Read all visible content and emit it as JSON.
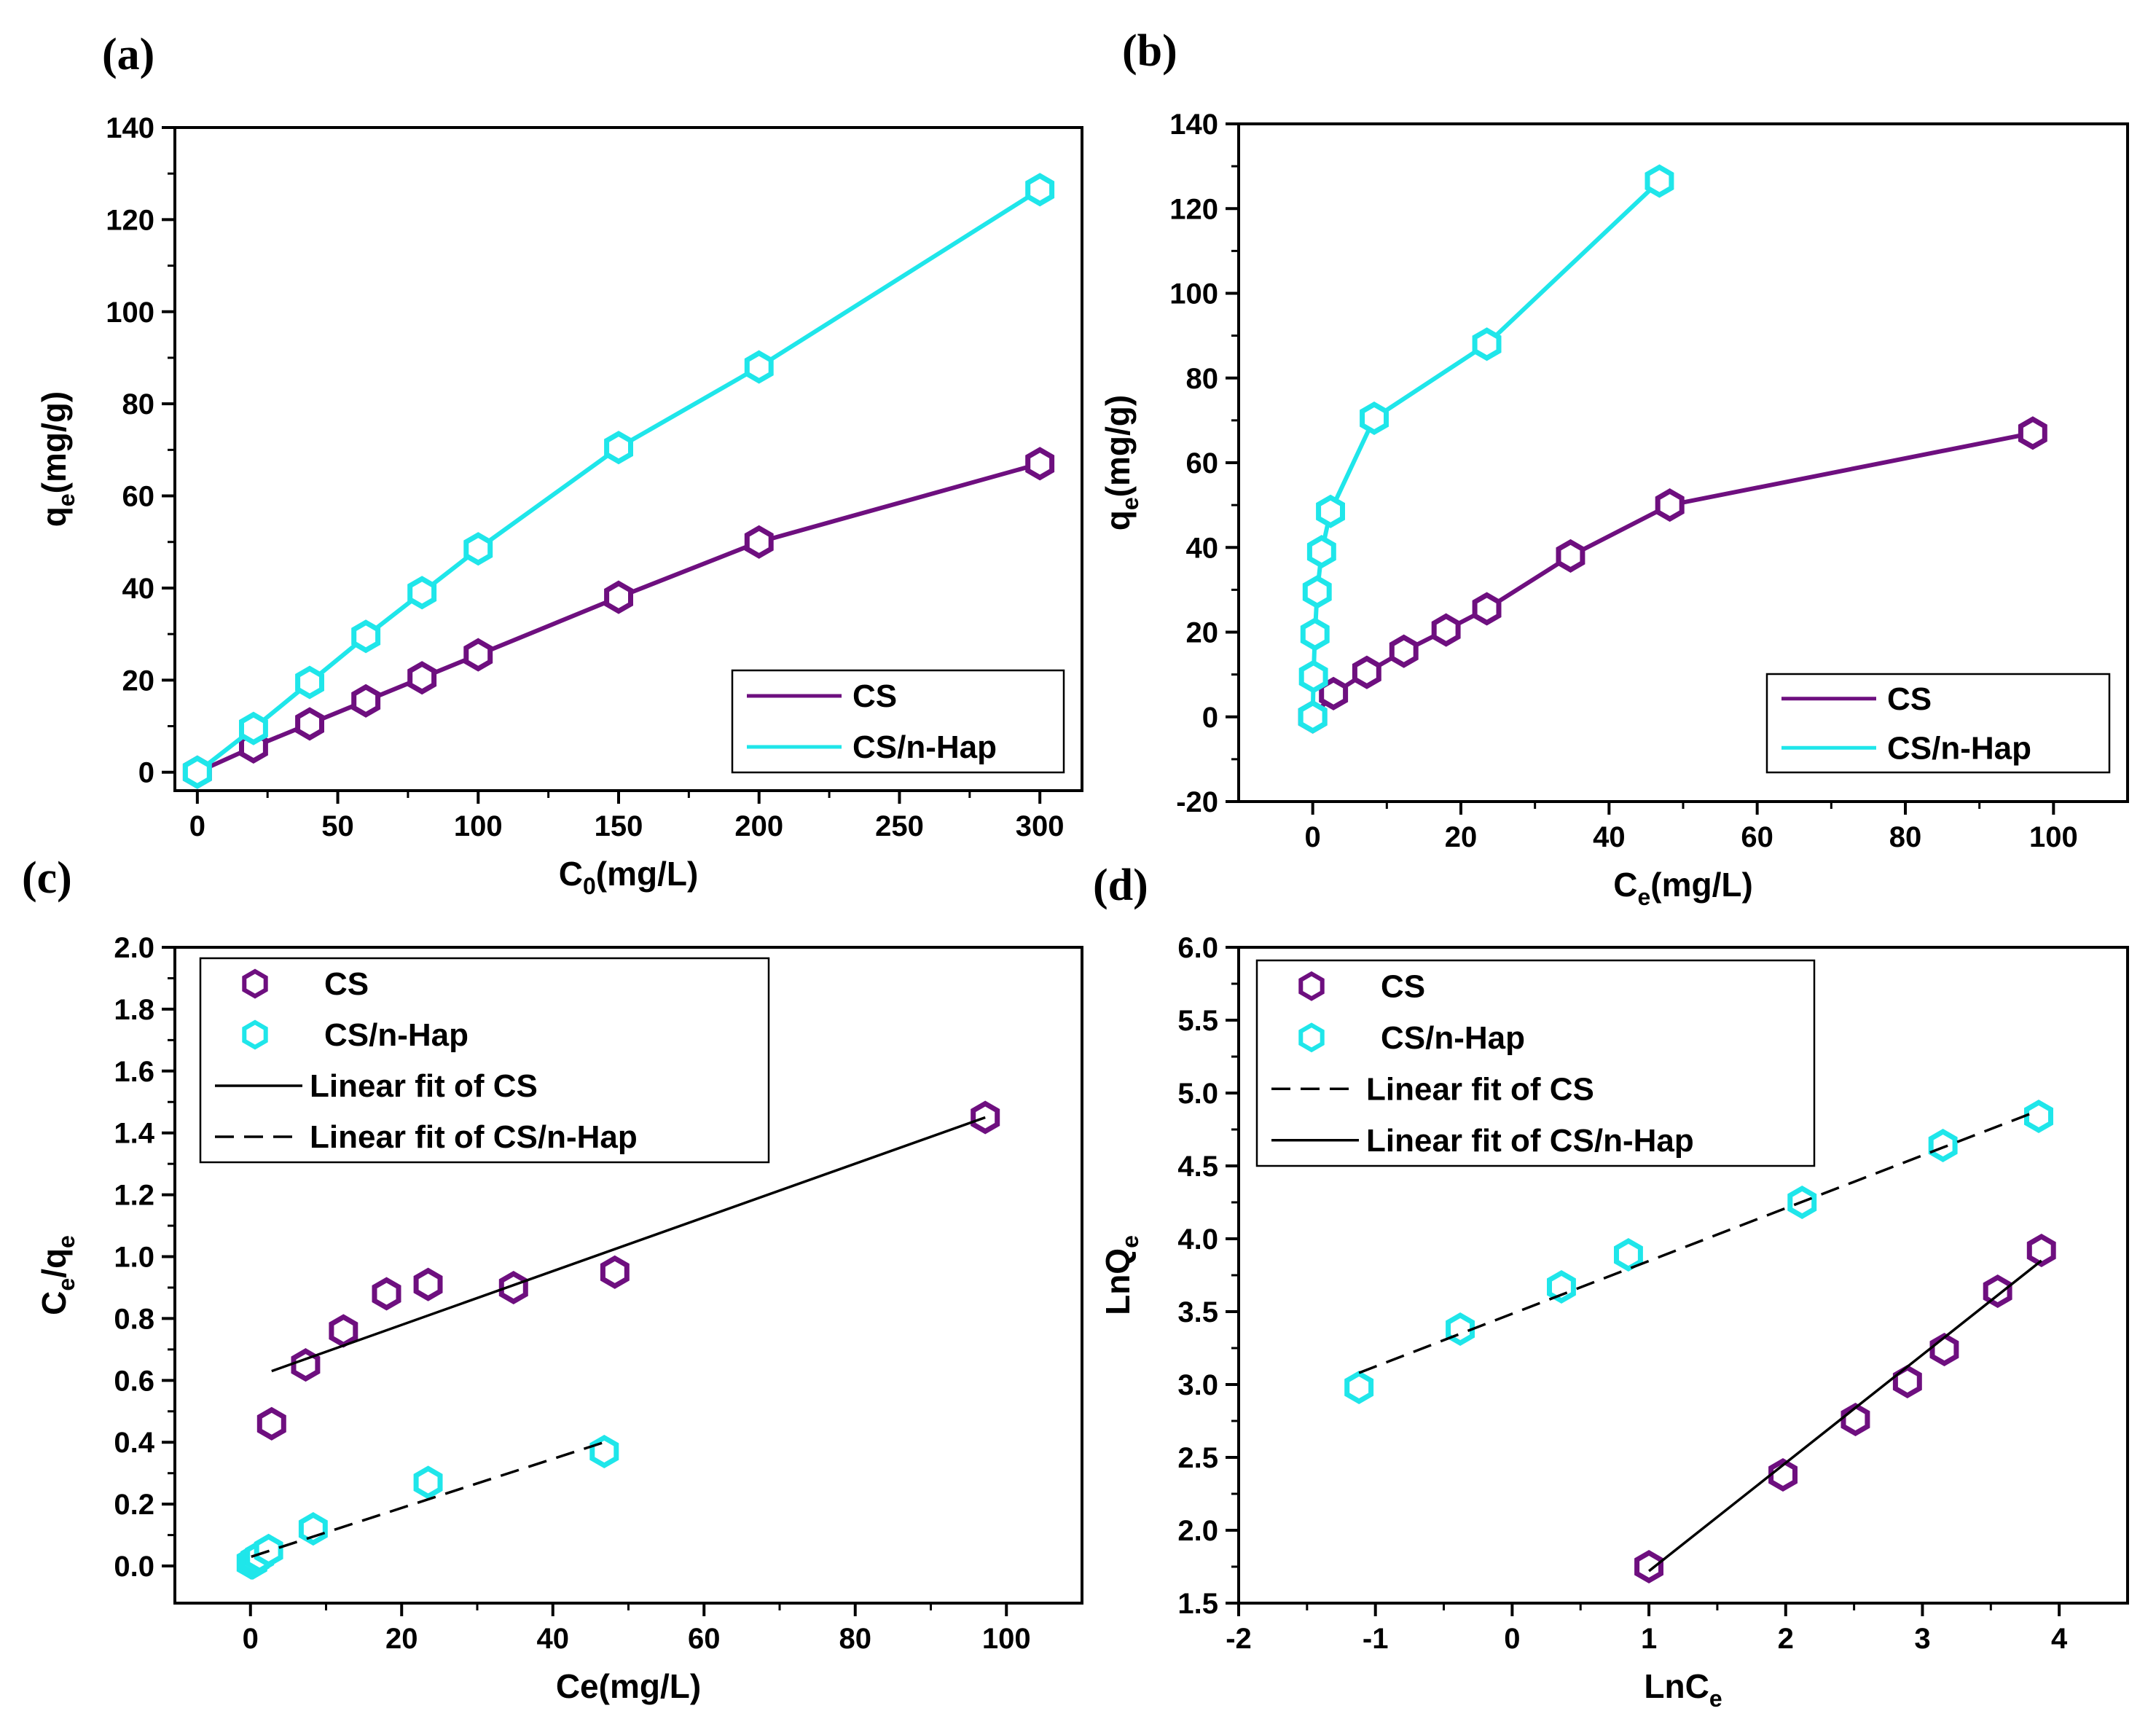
{
  "colors": {
    "cs": "#6e0f7f",
    "hap": "#1fe6ea",
    "fit": "#000000"
  },
  "chart_data": [
    {
      "id": "a",
      "tag": "(a)",
      "type": "line",
      "xlabel": "C",
      "xlabel_sub": "0",
      "xlabel_tail": "(mg/L)",
      "ylabel": "q",
      "ylabel_sub": "e",
      "ylabel_tail": "(mg/g)",
      "xlim": [
        -8,
        315
      ],
      "ylim": [
        -4,
        140
      ],
      "xticks": [
        0,
        50,
        100,
        150,
        200,
        250,
        300
      ],
      "yticks": [
        0,
        20,
        40,
        60,
        80,
        100,
        120,
        140
      ],
      "legend": {
        "position": "bottom-right",
        "entries": [
          "CS",
          "CS/n-Hap"
        ]
      },
      "series": [
        {
          "name": "CS",
          "color_key": "cs",
          "style": "line-marker",
          "x": [
            0,
            20,
            40,
            60,
            80,
            100,
            150,
            200,
            300
          ],
          "y": [
            0,
            5.5,
            10.5,
            15.5,
            20.5,
            25.5,
            38,
            50,
            67
          ]
        },
        {
          "name": "CS/n-Hap",
          "color_key": "hap",
          "style": "line-marker",
          "x": [
            0,
            20,
            40,
            60,
            80,
            100,
            150,
            200,
            300
          ],
          "y": [
            0,
            9.5,
            19.5,
            29.5,
            39,
            48.5,
            70.5,
            88,
            126.5
          ]
        }
      ]
    },
    {
      "id": "b",
      "tag": "(b)",
      "type": "line",
      "xlabel": "C",
      "xlabel_sub": "e",
      "xlabel_tail": "(mg/L)",
      "ylabel": "q",
      "ylabel_sub": "e",
      "ylabel_tail": "(mg/g)",
      "xlim": [
        -10,
        110
      ],
      "ylim": [
        -20,
        140
      ],
      "xticks": [
        0,
        20,
        40,
        60,
        80,
        100
      ],
      "yticks": [
        -20,
        0,
        20,
        40,
        60,
        80,
        100,
        120,
        140
      ],
      "legend": {
        "position": "bottom-right",
        "entries": [
          "CS",
          "CS/n-Hap"
        ]
      },
      "series": [
        {
          "name": "CS",
          "color_key": "cs",
          "style": "line-marker",
          "x": [
            0,
            2.8,
            7.3,
            12.3,
            18,
            23.5,
            34.8,
            48.2,
            97.2
          ],
          "y": [
            0,
            5.5,
            10.5,
            15.5,
            20.5,
            25.5,
            38,
            50,
            67
          ]
        },
        {
          "name": "CS/n-Hap",
          "color_key": "hap",
          "style": "line-marker",
          "x": [
            0,
            0.1,
            0.3,
            0.6,
            1.2,
            2.4,
            8.3,
            23.5,
            46.8
          ],
          "y": [
            0,
            9.5,
            19.5,
            29.5,
            39,
            48.5,
            70.5,
            88,
            126.5
          ]
        }
      ]
    },
    {
      "id": "c",
      "tag": "(c)",
      "type": "scatter",
      "xlabel": "Ce(mg/L)",
      "xlabel_sub": "",
      "xlabel_tail": "",
      "ylabel": "C",
      "ylabel_sub": "e",
      "ylabel_tail": "/q",
      "ylabel_sub2": "e",
      "xlim": [
        -10,
        110
      ],
      "ylim": [
        -0.12,
        2.0
      ],
      "xticks": [
        0,
        20,
        40,
        60,
        80,
        100
      ],
      "yticks": [
        0.0,
        0.2,
        0.4,
        0.6,
        0.8,
        1.0,
        1.2,
        1.4,
        1.6,
        1.8,
        2.0
      ],
      "ytick_decimals": 1,
      "legend": {
        "position": "top-left",
        "entries": [
          "CS",
          "CS/n-Hap",
          "Linear fit of CS",
          "Linear fit of CS/n-Hap"
        ]
      },
      "series": [
        {
          "name": "CS",
          "color_key": "cs",
          "style": "marker",
          "x": [
            2.8,
            7.3,
            12.3,
            18,
            23.5,
            34.8,
            48.2,
            97.2
          ],
          "y": [
            0.46,
            0.65,
            0.76,
            0.88,
            0.91,
            0.9,
            0.95,
            1.45
          ]
        },
        {
          "name": "CS/n-Hap",
          "color_key": "hap",
          "style": "marker",
          "x": [
            0.1,
            0.3,
            0.6,
            1.2,
            2.4,
            8.3,
            23.5,
            46.8
          ],
          "y": [
            0.01,
            0.01,
            0.02,
            0.03,
            0.05,
            0.12,
            0.27,
            0.37
          ]
        },
        {
          "name": "Linear fit of CS",
          "color_key": "fit",
          "style": "solid",
          "x": [
            2.8,
            97.2
          ],
          "y": [
            0.63,
            1.45
          ]
        },
        {
          "name": "Linear fit of CS/n-Hap",
          "color_key": "fit",
          "style": "dashed",
          "x": [
            0.1,
            46.8
          ],
          "y": [
            0.03,
            0.4
          ]
        }
      ]
    },
    {
      "id": "d",
      "tag": "(d)",
      "type": "scatter",
      "xlabel": "LnC",
      "xlabel_sub": "e",
      "xlabel_tail": "",
      "ylabel": "LnQ",
      "ylabel_sub": "e",
      "ylabel_tail": "",
      "xlim": [
        -2,
        4.5
      ],
      "ylim": [
        1.5,
        6.0
      ],
      "xticks": [
        -2,
        -1,
        0,
        1,
        2,
        3,
        4
      ],
      "yticks": [
        1.5,
        2.0,
        2.5,
        3.0,
        3.5,
        4.0,
        4.5,
        5.0,
        5.5,
        6.0
      ],
      "ytick_decimals": 1,
      "legend": {
        "position": "top-left",
        "entries": [
          "CS",
          "CS/n-Hap",
          "Linear fit of CS",
          "Linear fit of CS/n-Hap"
        ]
      },
      "series": [
        {
          "name": "CS",
          "color_key": "cs",
          "style": "marker",
          "x": [
            1.0,
            1.98,
            2.51,
            2.89,
            3.16,
            3.55,
            3.87
          ],
          "y": [
            1.75,
            2.38,
            2.76,
            3.02,
            3.24,
            3.64,
            3.92
          ]
        },
        {
          "name": "CS/n-Hap",
          "color_key": "hap",
          "style": "marker",
          "x": [
            -1.12,
            -0.38,
            0.36,
            0.85,
            2.12,
            3.15,
            3.85
          ],
          "y": [
            2.98,
            3.38,
            3.67,
            3.89,
            4.25,
            4.64,
            4.84
          ]
        },
        {
          "name": "Linear fit of CS",
          "color_key": "fit",
          "style": "dashed",
          "x": [
            -1.12,
            3.85
          ],
          "y": [
            3.08,
            4.88
          ]
        },
        {
          "name": "Linear fit of CS/n-Hap",
          "color_key": "fit",
          "style": "solid",
          "x": [
            1.0,
            3.87
          ],
          "y": [
            1.72,
            3.85
          ]
        }
      ]
    }
  ]
}
